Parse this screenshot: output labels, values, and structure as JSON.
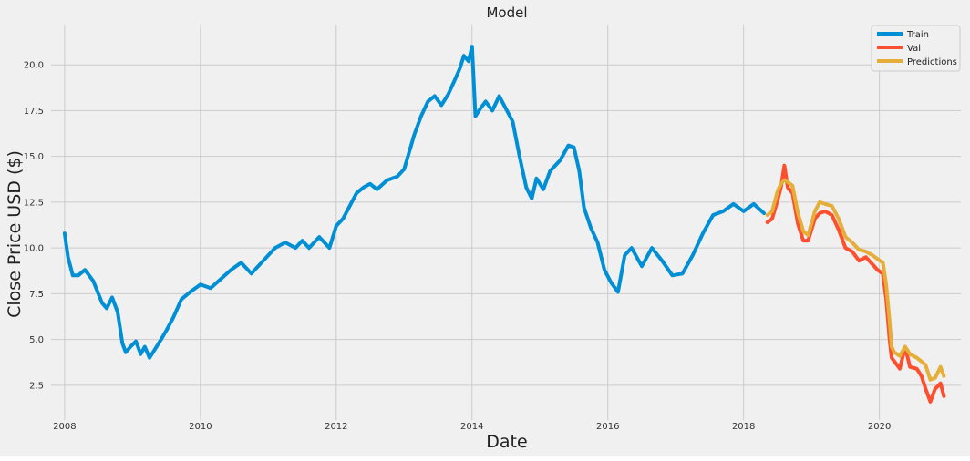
{
  "chart_data": {
    "type": "line",
    "title": "Model",
    "xlabel": "Date",
    "ylabel": "Close Price USD ($)",
    "xlim": [
      2007.8,
      2021.2
    ],
    "ylim": [
      0.6,
      22.2
    ],
    "x_ticks": [
      2008,
      2010,
      2012,
      2014,
      2016,
      2018,
      2020
    ],
    "x_tick_labels": [
      "2008",
      "2010",
      "2012",
      "2014",
      "2016",
      "2018",
      "2020"
    ],
    "y_ticks": [
      2.5,
      5.0,
      7.5,
      10.0,
      12.5,
      15.0,
      17.5,
      20.0
    ],
    "y_tick_labels": [
      "2.5",
      "5.0",
      "7.5",
      "10.0",
      "12.5",
      "15.0",
      "17.5",
      "20.0"
    ],
    "grid": true,
    "legend_position": "top-right",
    "background": "#f0f0f0",
    "series": [
      {
        "name": "Train",
        "color": "#008fd5",
        "x": [
          2008.0,
          2008.05,
          2008.12,
          2008.2,
          2008.3,
          2008.42,
          2008.55,
          2008.62,
          2008.7,
          2008.78,
          2008.85,
          2008.9,
          2008.97,
          2009.05,
          2009.12,
          2009.18,
          2009.25,
          2009.32,
          2009.42,
          2009.5,
          2009.6,
          2009.72,
          2009.85,
          2010.0,
          2010.15,
          2010.3,
          2010.45,
          2010.6,
          2010.75,
          2010.9,
          2011.0,
          2011.1,
          2011.25,
          2011.4,
          2011.5,
          2011.6,
          2011.75,
          2011.9,
          2012.0,
          2012.1,
          2012.2,
          2012.3,
          2012.4,
          2012.5,
          2012.6,
          2012.75,
          2012.9,
          2013.0,
          2013.15,
          2013.25,
          2013.35,
          2013.45,
          2013.55,
          2013.65,
          2013.75,
          2013.82,
          2013.88,
          2013.95,
          2014.0,
          2014.05,
          2014.12,
          2014.2,
          2014.3,
          2014.4,
          2014.5,
          2014.6,
          2014.7,
          2014.8,
          2014.88,
          2014.95,
          2015.05,
          2015.15,
          2015.3,
          2015.42,
          2015.5,
          2015.58,
          2015.65,
          2015.75,
          2015.85,
          2015.95,
          2016.05,
          2016.15,
          2016.25,
          2016.35,
          2016.5,
          2016.65,
          2016.8,
          2016.95,
          2017.1,
          2017.25,
          2017.4,
          2017.55,
          2017.7,
          2017.85,
          2018.0,
          2018.15,
          2018.3
        ],
        "y": [
          10.8,
          9.5,
          8.5,
          8.5,
          8.8,
          8.2,
          7.0,
          6.7,
          7.3,
          6.5,
          4.8,
          4.3,
          4.6,
          4.9,
          4.2,
          4.6,
          4.0,
          4.4,
          5.0,
          5.5,
          6.2,
          7.2,
          7.6,
          8.0,
          7.8,
          8.3,
          8.8,
          9.2,
          8.6,
          9.2,
          9.6,
          10.0,
          10.3,
          10.0,
          10.4,
          10.0,
          10.6,
          10.0,
          11.2,
          11.6,
          12.3,
          13.0,
          13.3,
          13.5,
          13.2,
          13.7,
          13.9,
          14.3,
          16.2,
          17.2,
          18.0,
          18.3,
          17.8,
          18.4,
          19.2,
          19.8,
          20.5,
          20.2,
          21.0,
          17.2,
          17.6,
          18.0,
          17.5,
          18.3,
          17.6,
          16.9,
          15.0,
          13.3,
          12.7,
          13.8,
          13.2,
          14.2,
          14.8,
          15.6,
          15.5,
          14.2,
          12.2,
          11.1,
          10.3,
          8.8,
          8.1,
          7.6,
          9.6,
          10.0,
          9.0,
          10.0,
          9.3,
          8.5,
          8.6,
          9.6,
          10.8,
          11.8,
          12.0,
          12.4,
          12.0,
          12.4,
          11.9
        ]
      },
      {
        "name": "Val",
        "color": "#fc4f30",
        "x": [
          2018.35,
          2018.42,
          2018.5,
          2018.55,
          2018.6,
          2018.65,
          2018.72,
          2018.8,
          2018.88,
          2018.95,
          2019.05,
          2019.12,
          2019.2,
          2019.3,
          2019.4,
          2019.5,
          2019.6,
          2019.7,
          2019.8,
          2019.9,
          2019.97,
          2020.05,
          2020.1,
          2020.15,
          2020.18,
          2020.22,
          2020.3,
          2020.38,
          2020.45,
          2020.55,
          2020.62,
          2020.68,
          2020.75,
          2020.82,
          2020.9,
          2020.95
        ],
        "y": [
          11.4,
          11.6,
          12.6,
          13.3,
          14.5,
          13.3,
          13.0,
          11.3,
          10.4,
          10.4,
          11.6,
          11.9,
          12.0,
          11.8,
          11.0,
          10.0,
          9.8,
          9.3,
          9.5,
          9.1,
          8.8,
          8.6,
          7.2,
          5.0,
          4.0,
          3.8,
          3.4,
          4.6,
          3.5,
          3.4,
          3.0,
          2.3,
          1.6,
          2.3,
          2.6,
          1.9
        ]
      },
      {
        "name": "Predictions",
        "color": "#e5ae38",
        "x": [
          2018.35,
          2018.42,
          2018.5,
          2018.55,
          2018.6,
          2018.65,
          2018.72,
          2018.8,
          2018.88,
          2018.95,
          2019.05,
          2019.12,
          2019.2,
          2019.3,
          2019.4,
          2019.5,
          2019.6,
          2019.7,
          2019.8,
          2019.9,
          2019.97,
          2020.05,
          2020.1,
          2020.15,
          2020.18,
          2020.22,
          2020.3,
          2020.38,
          2020.45,
          2020.55,
          2020.62,
          2020.68,
          2020.75,
          2020.82,
          2020.9,
          2020.95
        ],
        "y": [
          11.8,
          12.0,
          13.1,
          13.5,
          13.7,
          13.6,
          13.4,
          11.9,
          10.9,
          10.7,
          12.0,
          12.5,
          12.4,
          12.3,
          11.6,
          10.6,
          10.3,
          9.9,
          9.8,
          9.6,
          9.4,
          9.2,
          8.0,
          6.0,
          4.6,
          4.3,
          4.1,
          4.6,
          4.2,
          4.0,
          3.8,
          3.6,
          2.8,
          2.9,
          3.5,
          3.0
        ]
      }
    ]
  }
}
